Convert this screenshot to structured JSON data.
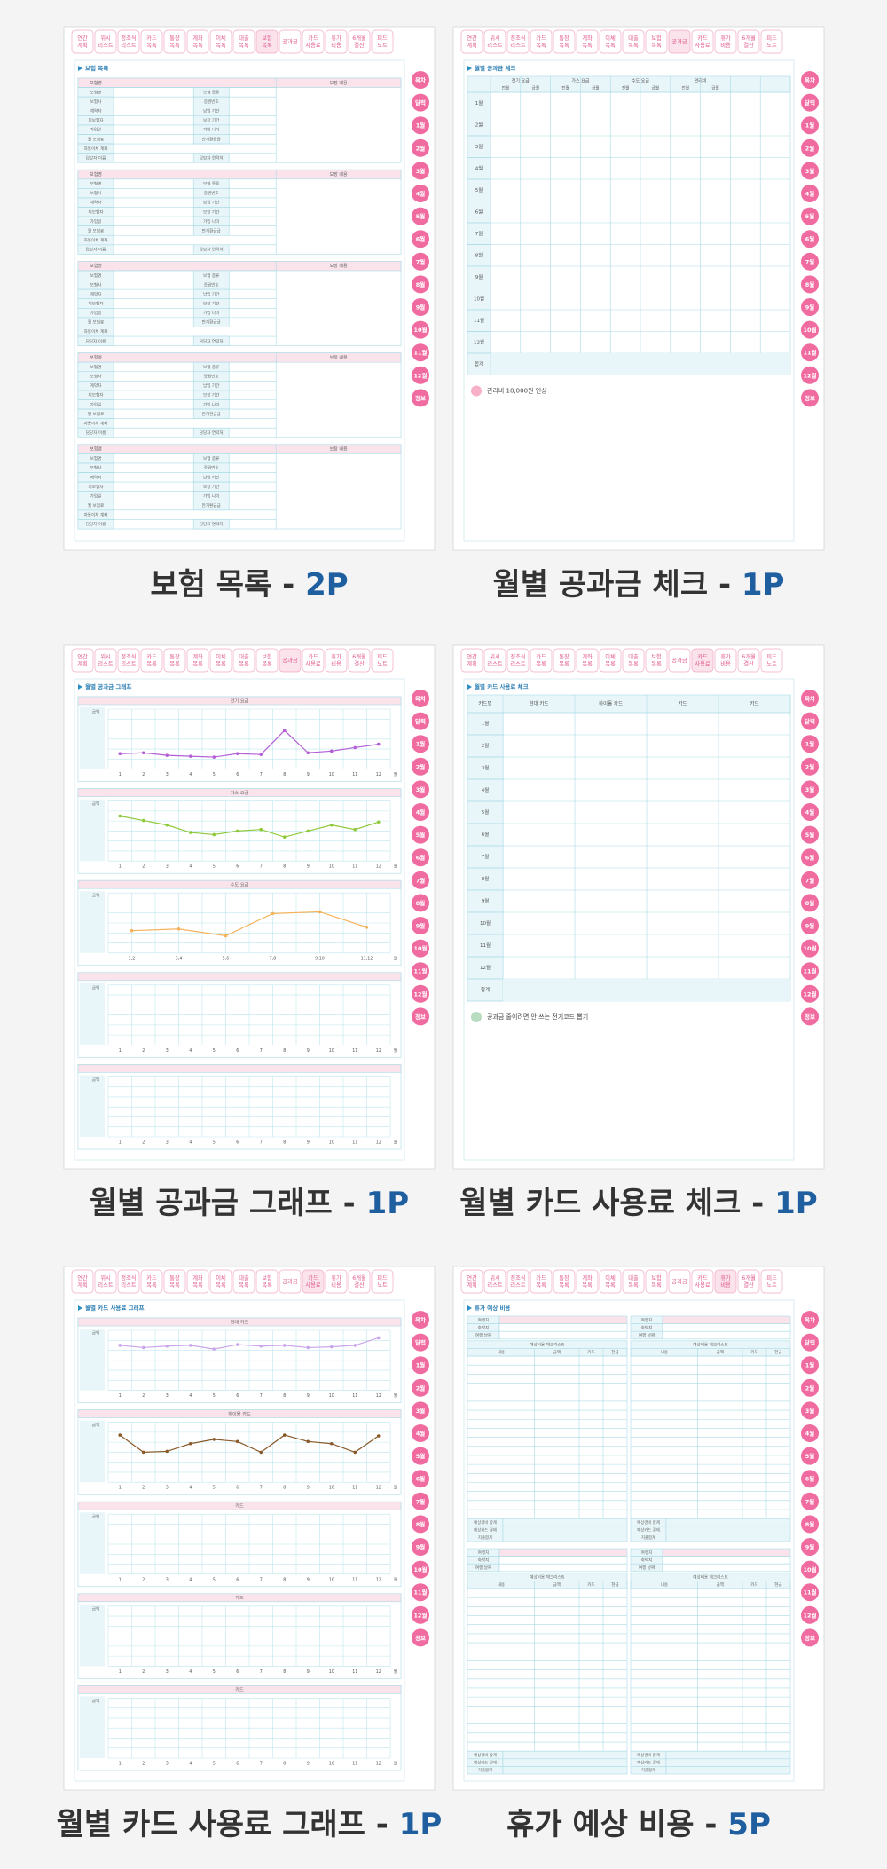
{
  "tabs": [
    [
      "연간",
      "계획"
    ],
    [
      "위시",
      "리스트"
    ],
    [
      "정조식",
      "리스트"
    ],
    [
      "카드",
      "목록"
    ],
    [
      "통장",
      "목록"
    ],
    [
      "계좌",
      "목록"
    ],
    [
      "이체",
      "목록"
    ],
    [
      "대출",
      "목록"
    ],
    [
      "보험",
      "목록"
    ],
    [
      "공과금"
    ],
    [
      "카드",
      "사용료"
    ],
    [
      "휴가",
      "비용"
    ],
    [
      "6개월",
      "결산"
    ],
    [
      "피드",
      "노트"
    ]
  ],
  "side": [
    "목차",
    "달력",
    "1월",
    "2월",
    "3월",
    "4월",
    "5월",
    "6월",
    "7월",
    "8월",
    "9월",
    "10월",
    "11월",
    "12월",
    "정보"
  ],
  "months": [
    "1월",
    "2월",
    "3월",
    "4월",
    "5월",
    "6월",
    "7월",
    "8월",
    "9월",
    "10월",
    "11월",
    "12월"
  ],
  "total": "합계",
  "sep": " - ",
  "xticks": [
    1,
    2,
    3,
    4,
    5,
    6,
    7,
    8,
    9,
    10,
    11,
    12
  ],
  "xunit": "월",
  "yaxis": "금액",
  "insurance_left": [
    "보험명",
    "보험사",
    "계약자",
    "피보험자",
    "가입일",
    "월 보험료",
    "자동이체 계좌",
    "담당자 이름"
  ],
  "insurance_right": [
    "보험 종류",
    "증권번호",
    "납입 기간",
    "보장 기간",
    "가입 나이",
    "만기환급금",
    "",
    "담당자 연락처"
  ],
  "insurance_cover": "보장 내용",
  "vacation_info": [
    "여행지",
    "숙박지",
    "여행 날짜"
  ],
  "vacation_list": "예상비용 체크리스트",
  "vacation_cols": [
    "내용",
    "금액",
    "카드",
    "현금"
  ],
  "vacation_foot": [
    "예상경비 합계",
    "예상카드 결제",
    "지출합계"
  ],
  "pages": [
    {
      "type": "insurance",
      "title": "보험 목록",
      "pages": "2P"
    },
    {
      "type": "utility-check",
      "title": "월별 공과금 체크",
      "pages": "1P",
      "headers": [
        "전기 요금",
        "가스 요금",
        "수도 요금",
        "관리비"
      ],
      "sub": [
        "전월",
        "금월"
      ],
      "note": "관리비 10,000원 인상"
    },
    {
      "type": "graph",
      "title": "월별 공과금 그래프",
      "pages": "1P",
      "charts": [
        {
          "title": "전기 요금",
          "color": "#b45fd6",
          "ylim": [
            0,
            70000
          ],
          "values": [
            18000,
            19000,
            16000,
            15000,
            14000,
            18000,
            17000,
            45000,
            19000,
            21000,
            25000,
            29000
          ]
        },
        {
          "title": "가스 요금",
          "color": "#8fc93a",
          "ylim": [
            0,
            200000
          ],
          "values": [
            150000,
            135000,
            120000,
            95000,
            88000,
            100000,
            105000,
            80000,
            100000,
            120000,
            105000,
            130000
          ]
        },
        {
          "title": "수도 요금",
          "color": "#f5b25a",
          "ylim": [
            0,
            35000
          ],
          "categories": [
            "1,2",
            "3,4",
            "5,6",
            "7,8",
            "9,10",
            "11,12"
          ],
          "values": [
            13000,
            14000,
            10000,
            23000,
            24000,
            15000
          ]
        },
        {
          "title": null
        },
        {
          "title": null
        }
      ]
    },
    {
      "type": "card-check",
      "title": "월별 카드 사용료 체크",
      "pages": "1P",
      "headers": [
        "카드명",
        "현대 카드",
        "하이몰 카드",
        "카드",
        "카드"
      ],
      "note": "공과금 줄이려면 안 쓰는 전기코드 뽑기"
    },
    {
      "type": "graph",
      "title": "월별 카드 사용료 그래프",
      "pages": "1P",
      "charts": [
        {
          "title": "현대 카드",
          "color": "#c9a6ea",
          "ylim": [
            0,
            80000
          ],
          "values": [
            60000,
            57000,
            59000,
            60000,
            55000,
            61000,
            59000,
            60000,
            57000,
            58000,
            60000,
            70000
          ]
        },
        {
          "title": "하이몰 카드",
          "color": "#8a5a2b",
          "ylim": [
            0,
            140000
          ],
          "values": [
            110000,
            70000,
            72000,
            90000,
            100000,
            95000,
            70000,
            110000,
            95000,
            90000,
            70000,
            108000
          ]
        },
        {
          "title": "카드"
        },
        {
          "title": "카드"
        },
        {
          "title": "카드"
        }
      ]
    },
    {
      "type": "vacation",
      "title": "휴가 예상 비용",
      "pages": "5P"
    }
  ]
}
